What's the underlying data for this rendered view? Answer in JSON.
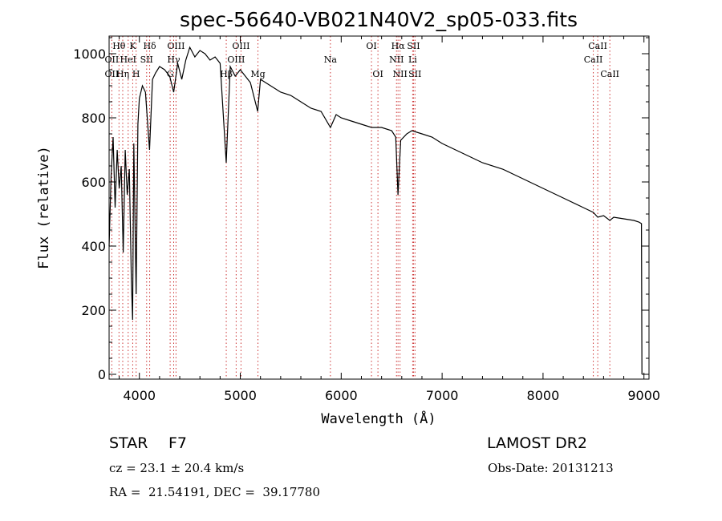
{
  "chart_data": {
    "type": "line",
    "title": "spec-56640-VB021N40V2_sp05-033.fits",
    "xlabel": "Wavelength (Å)",
    "ylabel": "Flux (relative)",
    "xlim": [
      3700,
      9050
    ],
    "ylim": [
      -15,
      1055
    ],
    "x_ticks": [
      4000,
      5000,
      6000,
      7000,
      8000,
      9000
    ],
    "y_ticks": [
      0,
      200,
      400,
      600,
      800,
      1000
    ],
    "grid": false,
    "series": [
      {
        "x": [
          3700,
          3720,
          3740,
          3760,
          3780,
          3800,
          3820,
          3840,
          3860,
          3880,
          3900,
          3920,
          3933,
          3945,
          3968,
          3985,
          4000,
          4030,
          4060,
          4101,
          4130,
          4160,
          4200,
          4250,
          4300,
          4340,
          4380,
          4420,
          4460,
          4500,
          4550,
          4600,
          4650,
          4700,
          4750,
          4800,
          4861,
          4900,
          4950,
          5000,
          5050,
          5100,
          5172,
          5200,
          5250,
          5300,
          5400,
          5500,
          5600,
          5700,
          5800,
          5893,
          5950,
          6000,
          6100,
          6200,
          6300,
          6400,
          6500,
          6540,
          6563,
          6590,
          6650,
          6700,
          6800,
          6900,
          7000,
          7200,
          7400,
          7600,
          7800,
          8000,
          8200,
          8400,
          8498,
          8542,
          8600,
          8662,
          8700,
          8800,
          8900,
          8950,
          8975,
          8980
        ],
        "y": [
          400,
          620,
          740,
          520,
          700,
          580,
          650,
          380,
          700,
          560,
          640,
          300,
          170,
          720,
          250,
          780,
          860,
          900,
          880,
          700,
          920,
          940,
          960,
          950,
          930,
          880,
          970,
          920,
          980,
          1020,
          990,
          1010,
          1000,
          980,
          990,
          970,
          660,
          960,
          930,
          950,
          930,
          910,
          820,
          920,
          910,
          900,
          880,
          870,
          850,
          830,
          820,
          770,
          810,
          800,
          790,
          780,
          770,
          770,
          760,
          740,
          560,
          730,
          750,
          760,
          750,
          740,
          720,
          690,
          660,
          640,
          610,
          580,
          550,
          520,
          505,
          490,
          495,
          480,
          490,
          485,
          480,
          475,
          470,
          0
        ]
      }
    ],
    "spectral_lines": [
      {
        "label": "Hθ",
        "x": 3798,
        "row": 0
      },
      {
        "label": "K",
        "x": 3934,
        "row": 0
      },
      {
        "label": "Hδ",
        "x": 4102,
        "row": 0
      },
      {
        "label": "OIII",
        "x": 4363,
        "row": 0
      },
      {
        "label": "OIII",
        "x": 5007,
        "row": 0
      },
      {
        "label": "OI",
        "x": 6300,
        "row": 0
      },
      {
        "label": "Hα",
        "x": 6563,
        "row": 0
      },
      {
        "label": "SII",
        "x": 6717,
        "row": 0
      },
      {
        "label": "CaII",
        "x": 8542,
        "row": 0
      },
      {
        "label": "OII",
        "x": 3727,
        "row": 1
      },
      {
        "label": "HeI",
        "x": 3889,
        "row": 1
      },
      {
        "label": "SII",
        "x": 4072,
        "row": 1
      },
      {
        "label": "Hγ",
        "x": 4340,
        "row": 1
      },
      {
        "label": "OIII",
        "x": 4959,
        "row": 1
      },
      {
        "label": "Na",
        "x": 5893,
        "row": 1
      },
      {
        "label": "NII",
        "x": 6548,
        "row": 1
      },
      {
        "label": "Li",
        "x": 6708,
        "row": 1
      },
      {
        "label": "CaII",
        "x": 8498,
        "row": 1
      },
      {
        "label": "OII",
        "x": 3727,
        "row": 2
      },
      {
        "label": "Hη",
        "x": 3835,
        "row": 2
      },
      {
        "label": "H",
        "x": 3968,
        "row": 2
      },
      {
        "label": "G",
        "x": 4305,
        "row": 2
      },
      {
        "label": "Hβ",
        "x": 4861,
        "row": 2
      },
      {
        "label": "Mg",
        "x": 5175,
        "row": 2
      },
      {
        "label": "OI",
        "x": 6364,
        "row": 2
      },
      {
        "label": "NII",
        "x": 6583,
        "row": 2
      },
      {
        "label": "SII",
        "x": 6731,
        "row": 2
      },
      {
        "label": "CaII",
        "x": 8662,
        "row": 2
      }
    ],
    "line_color": "#000000",
    "marker_color": "#cc3333"
  },
  "info": {
    "object_class": "STAR",
    "subclass": "F7",
    "survey": "LAMOST DR2",
    "cz": "cz = 23.1 ± 20.4 km/s",
    "obs_date": "Obs-Date: 20131213",
    "coords": "RA =  21.54191, DEC =  39.17780"
  }
}
